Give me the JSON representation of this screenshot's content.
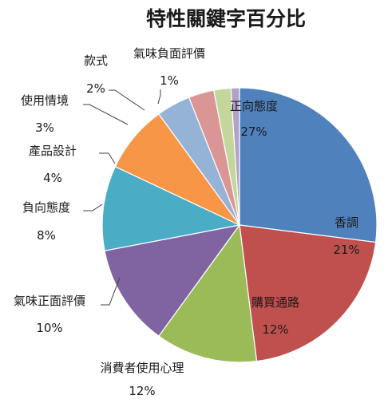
{
  "chart_data": {
    "type": "pie",
    "title": "特性關鍵字百分比",
    "slices": [
      {
        "label": "正向態度",
        "value": 27,
        "value_text": "27%",
        "color": "#4f81bd"
      },
      {
        "label": "香調",
        "value": 21,
        "value_text": "21%",
        "color": "#c0504d"
      },
      {
        "label": "購買通路",
        "value": 12,
        "value_text": "12%",
        "color": "#9bbb59"
      },
      {
        "label": "消費者使用心理",
        "value": 12,
        "value_text": "12%",
        "color": "#8064a2"
      },
      {
        "label": "氣味正面評價",
        "value": 10,
        "value_text": "10%",
        "color": "#4bacc6"
      },
      {
        "label": "負向態度",
        "value": 8,
        "value_text": "8%",
        "color": "#f79646"
      },
      {
        "label": "產品設計",
        "value": 4,
        "value_text": "4%",
        "color": "#95b3d7"
      },
      {
        "label": "使用情境",
        "value": 3,
        "value_text": "3%",
        "color": "#d99694"
      },
      {
        "label": "款式",
        "value": 2,
        "value_text": "2%",
        "color": "#c3d69b"
      },
      {
        "label": "氣味負面評價",
        "value": 1,
        "value_text": "1%",
        "color": "#b3a2c7"
      }
    ]
  }
}
